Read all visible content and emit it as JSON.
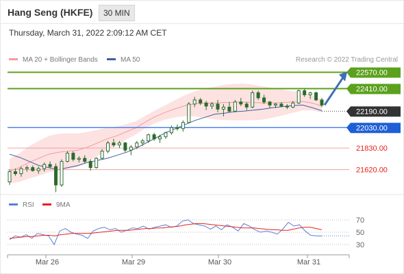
{
  "header": {
    "title": "Hang Seng (HKFE)",
    "timeframe": "30 MIN",
    "datetime": "Thursday, March 31, 2022 2:09:12 AM CET"
  },
  "legend": {
    "items": [
      {
        "label": "MA 20 + Bollinger Bands",
        "color": "#f59a9a"
      },
      {
        "label": "MA 50",
        "color": "#3d5fa0"
      }
    ],
    "credit": "Research © 2022 Trading Central"
  },
  "rsi_legend": {
    "items": [
      {
        "label": "RSI",
        "color": "#5a7fd6"
      },
      {
        "label": "9MA",
        "color": "#e8201a"
      }
    ]
  },
  "colors": {
    "resistance": "#5ca11e",
    "pivot": "#4d82f0",
    "support": "#f0a0a0",
    "current": "#333333",
    "candle": "#2d6a2d",
    "band_fill": "#fde2e2",
    "arrow": "#3e6fb8"
  },
  "chart_data": [
    {
      "type": "line",
      "title": "Hang Seng (HKFE) 30 MIN",
      "x_tick_labels": [
        "Mar 26",
        "Mar 29",
        "Mar 30",
        "Mar 31"
      ],
      "ylim": [
        21390,
        22620
      ],
      "levels": [
        {
          "label": "22570.00",
          "value": 22570,
          "kind": "resistance"
        },
        {
          "label": "22410.00",
          "value": 22410,
          "kind": "resistance"
        },
        {
          "label": "22190.00",
          "value": 22190,
          "kind": "current"
        },
        {
          "label": "22030.00",
          "value": 22030,
          "kind": "pivot"
        },
        {
          "label": "21830.00",
          "value": 21830,
          "kind": "support"
        },
        {
          "label": "21620.00",
          "value": 21620,
          "kind": "support"
        }
      ],
      "series": [
        {
          "name": "MA 20 + Bollinger Bands",
          "values": [
            21605,
            21640,
            21690,
            21730,
            21770,
            21790,
            21800,
            21810,
            21840,
            21880,
            21920,
            21950,
            21990,
            22030,
            22090,
            22140,
            22180,
            22215,
            22245,
            22262,
            22268,
            22270,
            22275,
            22278,
            22280,
            22275,
            22270,
            22272,
            22275,
            22280,
            22285,
            22270,
            22240
          ]
        },
        {
          "name": "MA 50",
          "values": [
            21770,
            21740,
            21700,
            21660,
            21640,
            21620,
            21640,
            21660,
            21690,
            21710,
            21730,
            21760,
            21790,
            21830,
            21880,
            21930,
            21980,
            22020,
            22060,
            22100,
            22130,
            22160,
            22170,
            22185,
            22190,
            22200,
            22210,
            22225,
            22235,
            22245,
            22250,
            22225,
            22195
          ]
        }
      ],
      "price_ohlc": [
        [
          21500,
          21620,
          21470,
          21600
        ],
        [
          21600,
          21630,
          21560,
          21580
        ],
        [
          21580,
          21650,
          21550,
          21630
        ],
        [
          21630,
          21660,
          21600,
          21640
        ],
        [
          21640,
          21660,
          21600,
          21610
        ],
        [
          21610,
          21650,
          21580,
          21630
        ],
        [
          21630,
          21690,
          21600,
          21670
        ],
        [
          21670,
          21700,
          21630,
          21650
        ],
        [
          21650,
          21680,
          21400,
          21470
        ],
        [
          21470,
          21720,
          21450,
          21700
        ],
        [
          21700,
          21800,
          21690,
          21780
        ],
        [
          21780,
          21800,
          21700,
          21720
        ],
        [
          21720,
          21750,
          21690,
          21730
        ],
        [
          21730,
          21760,
          21680,
          21700
        ],
        [
          21700,
          21720,
          21610,
          21640
        ],
        [
          21640,
          21740,
          21630,
          21730
        ],
        [
          21730,
          21820,
          21720,
          21800
        ],
        [
          21800,
          21900,
          21780,
          21880
        ],
        [
          21880,
          21920,
          21840,
          21860
        ],
        [
          21860,
          21900,
          21830,
          21880
        ],
        [
          21880,
          21890,
          21790,
          21810
        ],
        [
          21810,
          21860,
          21760,
          21840
        ],
        [
          21840,
          21900,
          21820,
          21880
        ],
        [
          21880,
          21920,
          21850,
          21900
        ],
        [
          21900,
          21970,
          21880,
          21960
        ],
        [
          21960,
          21980,
          21900,
          21920
        ],
        [
          21920,
          21960,
          21880,
          21940
        ],
        [
          21940,
          21990,
          21920,
          21980
        ],
        [
          21980,
          22050,
          21960,
          22030
        ],
        [
          22030,
          22060,
          22000,
          22020
        ],
        [
          22020,
          22100,
          21990,
          22080
        ],
        [
          22080,
          22280,
          22070,
          22260
        ],
        [
          22260,
          22330,
          22230,
          22300
        ],
        [
          22300,
          22320,
          22250,
          22270
        ],
        [
          22270,
          22290,
          22200,
          22240
        ],
        [
          22240,
          22280,
          22210,
          22260
        ],
        [
          22260,
          22300,
          22180,
          22210
        ],
        [
          22210,
          22260,
          22140,
          22230
        ],
        [
          22230,
          22280,
          22180,
          22190
        ],
        [
          22190,
          22300,
          22180,
          22280
        ],
        [
          22280,
          22320,
          22240,
          22260
        ],
        [
          22260,
          22280,
          22200,
          22230
        ],
        [
          22230,
          22390,
          22220,
          22370
        ],
        [
          22370,
          22390,
          22300,
          22320
        ],
        [
          22320,
          22350,
          22260,
          22280
        ],
        [
          22280,
          22290,
          22220,
          22250
        ],
        [
          22250,
          22270,
          22220,
          22260
        ],
        [
          22260,
          22280,
          22230,
          22240
        ],
        [
          22240,
          22260,
          22210,
          22230
        ],
        [
          22230,
          22290,
          22220,
          22270
        ],
        [
          22270,
          22400,
          22260,
          22390
        ],
        [
          22390,
          22410,
          22330,
          22350
        ],
        [
          22350,
          22380,
          22310,
          22370
        ],
        [
          22370,
          22380,
          22290,
          22300
        ],
        [
          22300,
          22320,
          22230,
          22250
        ]
      ]
    },
    {
      "type": "line",
      "title": "RSI",
      "ylim": [
        20,
        80
      ],
      "y_ticks": [
        70,
        50,
        30
      ],
      "series": [
        {
          "name": "RSI",
          "values": [
            38,
            44,
            42,
            46,
            40,
            48,
            46,
            44,
            30,
            52,
            56,
            50,
            47,
            45,
            40,
            52,
            56,
            58,
            54,
            56,
            50,
            53,
            57,
            56,
            60,
            55,
            58,
            60,
            62,
            58,
            60,
            68,
            70,
            64,
            62,
            60,
            55,
            60,
            54,
            62,
            58,
            52,
            64,
            60,
            54,
            50,
            52,
            50,
            47,
            55,
            66,
            60,
            62,
            52,
            45,
            44,
            44
          ]
        },
        {
          "name": "9MA",
          "values": [
            40,
            41,
            42,
            43,
            43,
            44,
            45,
            45,
            44,
            46,
            47,
            48,
            48,
            48,
            48,
            49,
            50,
            51,
            52,
            53,
            53,
            53,
            54,
            55,
            56,
            56,
            57,
            57,
            58,
            59,
            60,
            62,
            63,
            64,
            64,
            63,
            62,
            61,
            60,
            59,
            58,
            57,
            57,
            57,
            56,
            55,
            54,
            54,
            53,
            53,
            55,
            57,
            58,
            58,
            56,
            54
          ]
        }
      ]
    }
  ]
}
